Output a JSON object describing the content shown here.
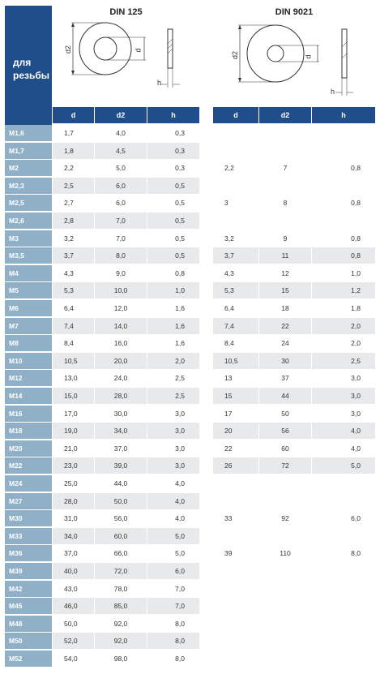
{
  "corner_label": "для резьбы",
  "tables": [
    {
      "title": "DIN 125",
      "headers": [
        "d",
        "d2",
        "h"
      ]
    },
    {
      "title": "DIN 9021",
      "headers": [
        "d",
        "d2",
        "h"
      ]
    }
  ],
  "diagram_labels": {
    "d2": "d2",
    "d": "d",
    "h": "h"
  },
  "rows": [
    {
      "size": "M1,6",
      "din125": [
        "1,7",
        "4,0",
        "0,3"
      ],
      "din9021": null
    },
    {
      "size": "M1,7",
      "din125": [
        "1,8",
        "4,5",
        "0,3"
      ],
      "din9021": null
    },
    {
      "size": "M2",
      "din125": [
        "2,2",
        "5,0",
        "0,3"
      ],
      "din9021": [
        "2,2",
        "7",
        "0,8"
      ]
    },
    {
      "size": "M2,3",
      "din125": [
        "2,5",
        "6,0",
        "0,5"
      ],
      "din9021": null
    },
    {
      "size": "M2,5",
      "din125": [
        "2,7",
        "6,0",
        "0,5"
      ],
      "din9021": [
        "3",
        "8",
        "0,8"
      ]
    },
    {
      "size": "M2,6",
      "din125": [
        "2,8",
        "7,0",
        "0,5"
      ],
      "din9021": null
    },
    {
      "size": "M3",
      "din125": [
        "3,2",
        "7,0",
        "0,5"
      ],
      "din9021": [
        "3,2",
        "9",
        "0,8"
      ]
    },
    {
      "size": "M3,5",
      "din125": [
        "3,7",
        "8,0",
        "0,5"
      ],
      "din9021": [
        "3,7",
        "11",
        "0,8"
      ]
    },
    {
      "size": "M4",
      "din125": [
        "4,3",
        "9,0",
        "0,8"
      ],
      "din9021": [
        "4,3",
        "12",
        "1,0"
      ]
    },
    {
      "size": "M5",
      "din125": [
        "5,3",
        "10,0",
        "1,0"
      ],
      "din9021": [
        "5,3",
        "15",
        "1,2"
      ]
    },
    {
      "size": "M6",
      "din125": [
        "6,4",
        "12,0",
        "1,6"
      ],
      "din9021": [
        "6,4",
        "18",
        "1,8"
      ]
    },
    {
      "size": "M7",
      "din125": [
        "7,4",
        "14,0",
        "1,6"
      ],
      "din9021": [
        "7,4",
        "22",
        "2,0"
      ]
    },
    {
      "size": "M8",
      "din125": [
        "8,4",
        "16,0",
        "1,6"
      ],
      "din9021": [
        "8,4",
        "24",
        "2,0"
      ]
    },
    {
      "size": "M10",
      "din125": [
        "10,5",
        "20,0",
        "2,0"
      ],
      "din9021": [
        "10,5",
        "30",
        "2,5"
      ]
    },
    {
      "size": "M12",
      "din125": [
        "13,0",
        "24,0",
        "2,5"
      ],
      "din9021": [
        "13",
        "37",
        "3,0"
      ]
    },
    {
      "size": "M14",
      "din125": [
        "15,0",
        "28,0",
        "2,5"
      ],
      "din9021": [
        "15",
        "44",
        "3,0"
      ]
    },
    {
      "size": "M16",
      "din125": [
        "17,0",
        "30,0",
        "3,0"
      ],
      "din9021": [
        "17",
        "50",
        "3,0"
      ]
    },
    {
      "size": "M18",
      "din125": [
        "19,0",
        "34,0",
        "3,0"
      ],
      "din9021": [
        "20",
        "56",
        "4,0"
      ]
    },
    {
      "size": "M20",
      "din125": [
        "21,0",
        "37,0",
        "3,0"
      ],
      "din9021": [
        "22",
        "60",
        "4,0"
      ]
    },
    {
      "size": "M22",
      "din125": [
        "23,0",
        "39,0",
        "3,0"
      ],
      "din9021": [
        "26",
        "72",
        "5,0"
      ]
    },
    {
      "size": "M24",
      "din125": [
        "25,0",
        "44,0",
        "4,0"
      ],
      "din9021": null
    },
    {
      "size": "M27",
      "din125": [
        "28,0",
        "50,0",
        "4,0"
      ],
      "din9021": null
    },
    {
      "size": "M30",
      "din125": [
        "31,0",
        "56,0",
        "4,0"
      ],
      "din9021": [
        "33",
        "92",
        "6,0"
      ]
    },
    {
      "size": "M33",
      "din125": [
        "34,0",
        "60,0",
        "5,0"
      ],
      "din9021": null
    },
    {
      "size": "M36",
      "din125": [
        "37,0",
        "66,0",
        "5,0"
      ],
      "din9021": [
        "39",
        "110",
        "8,0"
      ]
    },
    {
      "size": "M39",
      "din125": [
        "40,0",
        "72,0",
        "6,0"
      ],
      "din9021": null
    },
    {
      "size": "M42",
      "din125": [
        "43,0",
        "78,0",
        "7,0"
      ],
      "din9021": null
    },
    {
      "size": "M45",
      "din125": [
        "46,0",
        "85,0",
        "7,0"
      ],
      "din9021": null
    },
    {
      "size": "M48",
      "din125": [
        "50,0",
        "92,0",
        "8,0"
      ],
      "din9021": null
    },
    {
      "size": "M50",
      "din125": [
        "52,0",
        "92,0",
        "8,0"
      ],
      "din9021": null
    },
    {
      "size": "M52",
      "din125": [
        "54,0",
        "98,0",
        "8,0"
      ],
      "din9021": null
    }
  ]
}
